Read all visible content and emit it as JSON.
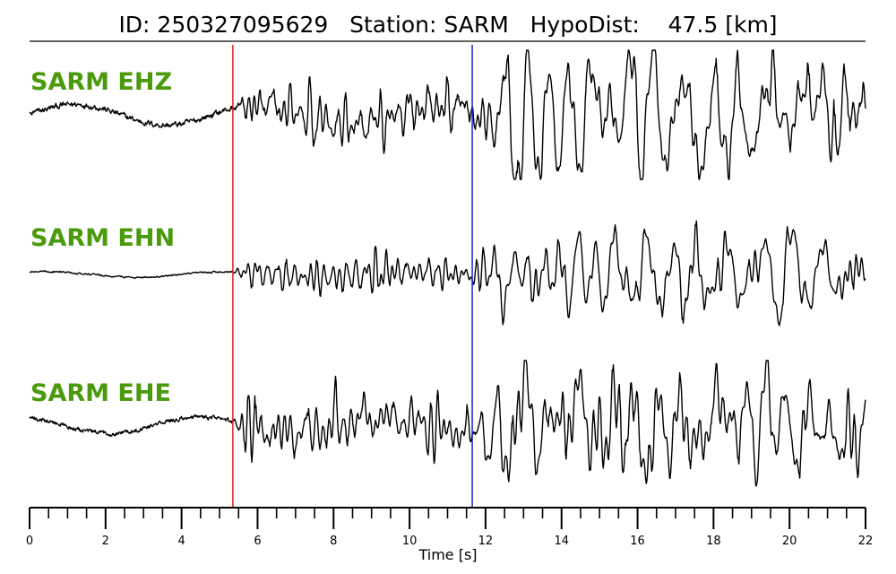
{
  "chart_data": {
    "type": "line",
    "title": "ID: 250327095629   Station: SARM   HypoDist:    47.5 [km]",
    "xlabel": "Time [s]",
    "ylabel": "",
    "xlim": [
      0,
      22
    ],
    "x_major_ticks": [
      0,
      2,
      4,
      6,
      8,
      10,
      12,
      14,
      16,
      18,
      20,
      22
    ],
    "x_minor_step": 0.5,
    "grid": false,
    "legend": "none",
    "picks": [
      {
        "phase": "P",
        "time": 5.35,
        "color": "#e41a1c"
      },
      {
        "phase": "S",
        "time": 11.65,
        "color": "#2222cc"
      }
    ],
    "channel_label_color": "#4a9a0c",
    "trace_color": "#000000",
    "series": [
      {
        "name": "SARM EHZ",
        "noise_amp": 0.18,
        "p_amp": 0.55,
        "s_amp": 0.95,
        "peak_time": 13.2
      },
      {
        "name": "SARM EHN",
        "noise_amp": 0.05,
        "p_amp": 0.35,
        "s_amp": 0.9,
        "peak_time": 15.0
      },
      {
        "name": "SARM EHE",
        "noise_amp": 0.14,
        "p_amp": 0.55,
        "s_amp": 0.95,
        "peak_time": 12.1
      }
    ]
  }
}
